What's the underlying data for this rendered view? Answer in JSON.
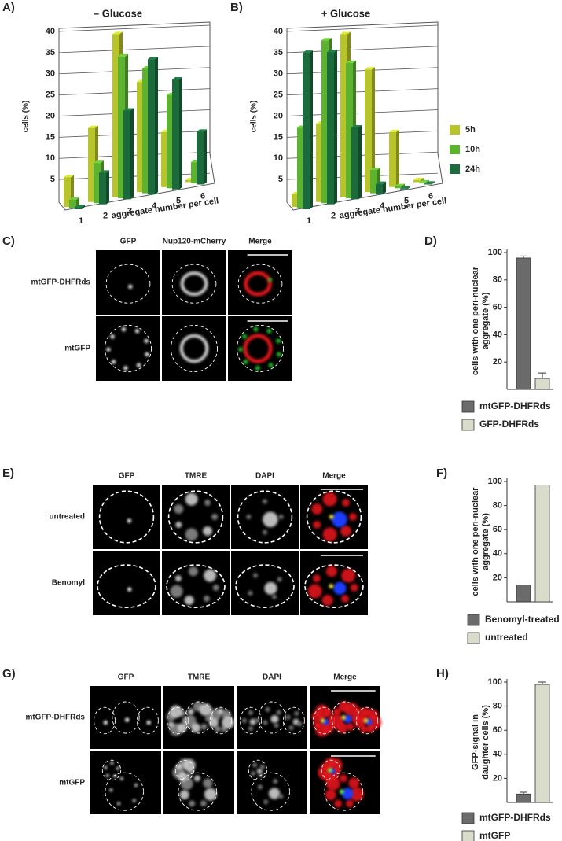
{
  "chart_data": [
    {
      "type": "bar3d",
      "label": "A)",
      "title": "– Glucose",
      "ylabel": "cells (%)",
      "xlabel": "aggregate number per cell",
      "categories": [
        "1",
        "2",
        "3",
        "4",
        "5",
        "6"
      ],
      "series": [
        {
          "color": "#b8c42c",
          "values": [
            7,
            17.5,
            38.5,
            26,
            13,
            0.5
          ]
        },
        {
          "color": "#5db22f",
          "values": [
            2,
            9.5,
            33.5,
            29.5,
            22,
            5
          ]
        },
        {
          "color": "#1b6b3c",
          "values": [
            0.5,
            7.5,
            21,
            32,
            26,
            12.5
          ]
        }
      ],
      "ylim": [
        0,
        40
      ],
      "yticks": [
        5,
        10,
        15,
        20,
        25,
        30,
        35,
        40
      ],
      "grid": true
    },
    {
      "type": "bar3d",
      "label": "B)",
      "title": "+ Glucose",
      "ylabel": "cells (%)",
      "xlabel": "aggregate number per cell",
      "categories": [
        "1",
        "2",
        "3",
        "4",
        "5",
        "6"
      ],
      "series": [
        {
          "name": "5h",
          "color": "#b8c42c",
          "values": [
            3,
            18.5,
            38.5,
            29,
            13,
            0.5
          ]
        },
        {
          "name": "10h",
          "color": "#5db22f",
          "values": [
            19,
            38.5,
            32,
            5.5,
            0.5,
            0.2
          ]
        },
        {
          "name": "24h",
          "color": "#1b6b3c",
          "values": [
            37,
            36,
            17,
            2.5,
            0.2,
            0.2
          ]
        }
      ],
      "ylim": [
        0,
        40
      ],
      "yticks": [
        5,
        10,
        15,
        20,
        25,
        30,
        35,
        40
      ],
      "grid": true
    },
    {
      "type": "bar",
      "label": "D)",
      "ylabel": [
        "cells with one peri-nuclear",
        "aggregate (%)"
      ],
      "series": [
        {
          "name": "mtGFP-DHFRds",
          "color": "#6b6b6b",
          "values": [
            96
          ],
          "errors": [
            1.5
          ]
        },
        {
          "name": "GFP-DHFRds",
          "color": "#d9dccb",
          "values": [
            8
          ],
          "errors": [
            4
          ]
        }
      ],
      "ylim": [
        0,
        100
      ],
      "yticks": [
        20,
        40,
        60,
        80,
        100
      ]
    },
    {
      "type": "bar",
      "label": "F)",
      "ylabel": [
        "cells with one peri-nuclear",
        "aggregate (%)"
      ],
      "series": [
        {
          "name": "Benomyl-treated",
          "color": "#6b6b6b",
          "values": [
            14
          ]
        },
        {
          "name": "untreated",
          "color": "#d9dccb",
          "values": [
            97
          ]
        }
      ],
      "ylim": [
        0,
        100
      ],
      "yticks": [
        20,
        40,
        60,
        80,
        100
      ]
    },
    {
      "type": "bar",
      "label": "H)",
      "ylabel": [
        "GFP-signal in",
        "daughter cells (%)"
      ],
      "series": [
        {
          "name": "mtGFP-DHFRds",
          "color": "#6b6b6b",
          "values": [
            7
          ],
          "errors": [
            1.5
          ]
        },
        {
          "name": "mtGFP",
          "color": "#d9dccb",
          "values": [
            98
          ],
          "errors": [
            2
          ]
        }
      ],
      "ylim": [
        0,
        100
      ],
      "yticks": [
        20,
        40,
        60,
        80,
        100
      ]
    }
  ],
  "image_panels": [
    {
      "label": "C)",
      "columns": [
        "GFP",
        "Nup120-mCherry",
        "Merge"
      ],
      "rows": [
        "mtGFP-DHFRds",
        "mtGFP"
      ]
    },
    {
      "label": "E)",
      "columns": [
        "GFP",
        "TMRE",
        "DAPI",
        "Merge"
      ],
      "rows": [
        "untreated",
        "Benomyl"
      ]
    },
    {
      "label": "G)",
      "columns": [
        "GFP",
        "TMRE",
        "DAPI",
        "Merge"
      ],
      "rows": [
        "mtGFP-DHFRds",
        "mtGFP"
      ]
    }
  ]
}
